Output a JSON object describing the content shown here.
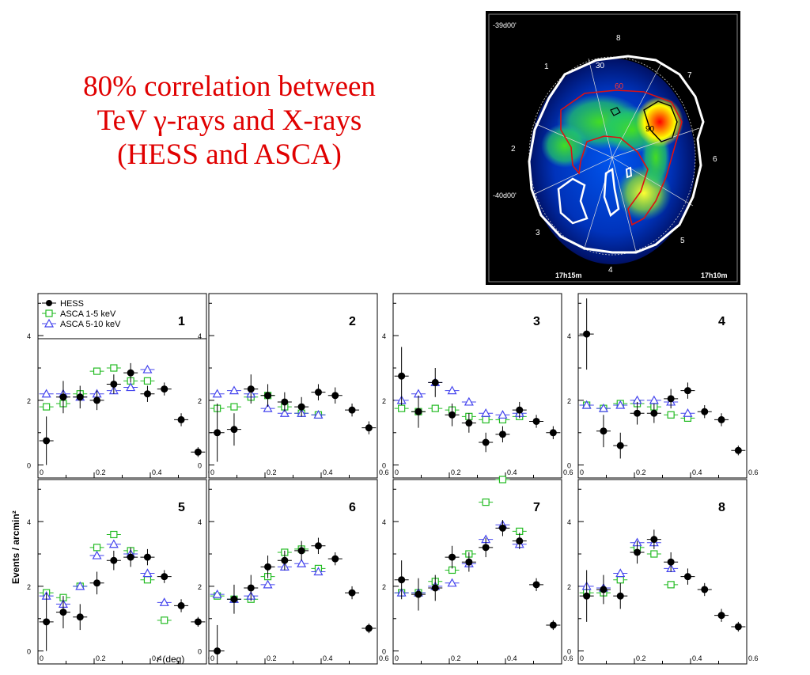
{
  "heading": {
    "line1": "80% correlation between",
    "line2": "TeV γ-rays  and X-rays",
    "line3": "(HESS and ASCA)",
    "color": "#e00000"
  },
  "map": {
    "dec_top": "-39d00'",
    "dec_mid": "-40d00'",
    "ra_left": "17h15m",
    "ra_right": "17h10m",
    "sectors": [
      "1",
      "2",
      "3",
      "4",
      "5",
      "6",
      "7",
      "8"
    ],
    "contours": [
      "30",
      "60",
      "90"
    ]
  },
  "chart_data": {
    "type": "scatter",
    "ylabel": "Events / arcmin²",
    "xlabel": "r (deg)",
    "xlim": [
      0,
      0.6
    ],
    "ylim": [
      -0.4,
      5.3
    ],
    "x_ticks": [
      "0",
      "0.2",
      "0.4",
      "0.6"
    ],
    "y_ticks": [
      "0",
      "2",
      "4"
    ],
    "legend": {
      "position": "top-left",
      "entries": [
        "HESS",
        "ASCA 1-5 keV",
        "ASCA 5-10 keV"
      ]
    },
    "series_styles": [
      {
        "name": "HESS",
        "marker": "filled-circle",
        "color": "#000000"
      },
      {
        "name": "ASCA 1-5 keV",
        "marker": "open-square",
        "color": "#22bb22"
      },
      {
        "name": "ASCA 5-10 keV",
        "marker": "open-triangle",
        "color": "#4444ee"
      }
    ],
    "panels": [
      {
        "label": "1",
        "hess": [
          [
            0.03,
            0.75
          ],
          [
            0.09,
            2.1
          ],
          [
            0.15,
            2.1
          ],
          [
            0.21,
            2.0
          ],
          [
            0.27,
            2.5
          ],
          [
            0.33,
            2.85
          ],
          [
            0.39,
            2.2
          ],
          [
            0.45,
            2.35
          ],
          [
            0.51,
            1.4
          ],
          [
            0.57,
            0.4
          ]
        ],
        "hess_err": [
          0.75,
          0.5,
          0.35,
          0.3,
          0.3,
          0.3,
          0.25,
          0.2,
          0.2,
          0.15
        ],
        "asca_1_5": [
          [
            0.03,
            1.8
          ],
          [
            0.09,
            1.9
          ],
          [
            0.15,
            2.2
          ],
          [
            0.21,
            2.9
          ],
          [
            0.27,
            3.0
          ],
          [
            0.33,
            2.6
          ],
          [
            0.39,
            2.6
          ]
        ],
        "asca_5_10": [
          [
            0.03,
            2.2
          ],
          [
            0.09,
            2.2
          ],
          [
            0.15,
            2.1
          ],
          [
            0.21,
            2.2
          ],
          [
            0.27,
            2.3
          ],
          [
            0.33,
            2.4
          ],
          [
            0.39,
            2.95
          ]
        ]
      },
      {
        "label": "2",
        "hess": [
          [
            0.03,
            1.0
          ],
          [
            0.09,
            1.1
          ],
          [
            0.15,
            2.35
          ],
          [
            0.21,
            2.15
          ],
          [
            0.27,
            1.95
          ],
          [
            0.33,
            1.8
          ],
          [
            0.39,
            2.25
          ],
          [
            0.45,
            2.15
          ],
          [
            0.51,
            1.7
          ],
          [
            0.57,
            1.15
          ]
        ],
        "hess_err": [
          0.9,
          0.5,
          0.45,
          0.35,
          0.3,
          0.3,
          0.25,
          0.25,
          0.2,
          0.2
        ],
        "asca_1_5": [
          [
            0.03,
            1.75
          ],
          [
            0.09,
            1.8
          ],
          [
            0.15,
            2.1
          ],
          [
            0.21,
            2.15
          ],
          [
            0.27,
            1.8
          ],
          [
            0.33,
            1.6
          ],
          [
            0.39,
            1.55
          ]
        ],
        "asca_5_10": [
          [
            0.03,
            2.2
          ],
          [
            0.09,
            2.3
          ],
          [
            0.15,
            2.2
          ],
          [
            0.21,
            1.75
          ],
          [
            0.27,
            1.6
          ],
          [
            0.33,
            1.6
          ],
          [
            0.39,
            1.55
          ]
        ]
      },
      {
        "label": "3",
        "hess": [
          [
            0.03,
            2.75
          ],
          [
            0.09,
            1.65
          ],
          [
            0.15,
            2.55
          ],
          [
            0.21,
            1.55
          ],
          [
            0.27,
            1.3
          ],
          [
            0.33,
            0.7
          ],
          [
            0.39,
            0.95
          ],
          [
            0.45,
            1.7
          ],
          [
            0.51,
            1.35
          ],
          [
            0.57,
            1.0
          ]
        ],
        "hess_err": [
          0.9,
          0.5,
          0.45,
          0.35,
          0.3,
          0.3,
          0.25,
          0.25,
          0.2,
          0.2
        ],
        "asca_1_5": [
          [
            0.03,
            1.75
          ],
          [
            0.09,
            1.65
          ],
          [
            0.15,
            1.75
          ],
          [
            0.21,
            1.7
          ],
          [
            0.27,
            1.5
          ],
          [
            0.33,
            1.4
          ],
          [
            0.39,
            1.4
          ],
          [
            0.45,
            1.5
          ]
        ],
        "asca_5_10": [
          [
            0.03,
            2.0
          ],
          [
            0.09,
            2.2
          ],
          [
            0.15,
            2.55
          ],
          [
            0.21,
            2.3
          ],
          [
            0.27,
            1.95
          ],
          [
            0.33,
            1.6
          ],
          [
            0.39,
            1.55
          ],
          [
            0.45,
            1.6
          ]
        ]
      },
      {
        "label": "4",
        "hess": [
          [
            0.03,
            4.05
          ],
          [
            0.09,
            1.05
          ],
          [
            0.15,
            0.6
          ],
          [
            0.21,
            1.6
          ],
          [
            0.27,
            1.6
          ],
          [
            0.33,
            2.05
          ],
          [
            0.39,
            2.3
          ],
          [
            0.45,
            1.65
          ],
          [
            0.51,
            1.4
          ],
          [
            0.57,
            0.45
          ]
        ],
        "hess_err": [
          1.1,
          0.5,
          0.4,
          0.35,
          0.3,
          0.3,
          0.25,
          0.2,
          0.2,
          0.15
        ],
        "asca_1_5": [
          [
            0.03,
            1.85
          ],
          [
            0.09,
            1.75
          ],
          [
            0.15,
            1.9
          ],
          [
            0.21,
            1.9
          ],
          [
            0.27,
            1.8
          ],
          [
            0.33,
            1.55
          ],
          [
            0.39,
            1.45
          ]
        ],
        "asca_5_10": [
          [
            0.03,
            1.85
          ],
          [
            0.09,
            1.75
          ],
          [
            0.15,
            1.85
          ],
          [
            0.21,
            2.0
          ],
          [
            0.27,
            2.0
          ],
          [
            0.33,
            1.95
          ],
          [
            0.39,
            1.6
          ]
        ]
      },
      {
        "label": "5",
        "hess": [
          [
            0.03,
            0.9
          ],
          [
            0.09,
            1.2
          ],
          [
            0.15,
            1.05
          ],
          [
            0.21,
            2.1
          ],
          [
            0.27,
            2.8
          ],
          [
            0.33,
            2.9
          ],
          [
            0.39,
            2.9
          ],
          [
            0.45,
            2.3
          ],
          [
            0.51,
            1.4
          ],
          [
            0.57,
            0.9
          ]
        ],
        "hess_err": [
          0.9,
          0.5,
          0.4,
          0.35,
          0.3,
          0.3,
          0.25,
          0.2,
          0.2,
          0.15
        ],
        "asca_1_5": [
          [
            0.03,
            1.8
          ],
          [
            0.09,
            1.65
          ],
          [
            0.15,
            2.0
          ],
          [
            0.21,
            3.2
          ],
          [
            0.27,
            3.6
          ],
          [
            0.33,
            3.1
          ],
          [
            0.39,
            2.2
          ],
          [
            0.45,
            0.95
          ]
        ],
        "asca_5_10": [
          [
            0.03,
            1.7
          ],
          [
            0.09,
            1.45
          ],
          [
            0.15,
            2.0
          ],
          [
            0.21,
            2.95
          ],
          [
            0.27,
            3.3
          ],
          [
            0.33,
            3.0
          ],
          [
            0.39,
            2.4
          ],
          [
            0.45,
            1.5
          ]
        ]
      },
      {
        "label": "6",
        "hess": [
          [
            0.03,
            0.0
          ],
          [
            0.09,
            1.6
          ],
          [
            0.15,
            1.95
          ],
          [
            0.21,
            2.6
          ],
          [
            0.27,
            2.8
          ],
          [
            0.33,
            3.1
          ],
          [
            0.39,
            3.25
          ],
          [
            0.45,
            2.85
          ],
          [
            0.51,
            1.8
          ],
          [
            0.57,
            0.7
          ]
        ],
        "hess_err": [
          0.8,
          0.45,
          0.4,
          0.35,
          0.3,
          0.3,
          0.25,
          0.2,
          0.2,
          0.15
        ],
        "asca_1_5": [
          [
            0.03,
            1.7
          ],
          [
            0.09,
            1.6
          ],
          [
            0.15,
            1.6
          ],
          [
            0.21,
            2.3
          ],
          [
            0.27,
            3.05
          ],
          [
            0.33,
            3.15
          ],
          [
            0.39,
            2.55
          ]
        ],
        "asca_5_10": [
          [
            0.03,
            1.75
          ],
          [
            0.09,
            1.6
          ],
          [
            0.15,
            1.7
          ],
          [
            0.21,
            2.05
          ],
          [
            0.27,
            2.6
          ],
          [
            0.33,
            2.7
          ],
          [
            0.39,
            2.45
          ]
        ]
      },
      {
        "label": "7",
        "hess": [
          [
            0.03,
            2.2
          ],
          [
            0.09,
            1.75
          ],
          [
            0.15,
            1.95
          ],
          [
            0.21,
            2.9
          ],
          [
            0.27,
            2.75
          ],
          [
            0.33,
            3.2
          ],
          [
            0.39,
            3.8
          ],
          [
            0.45,
            3.4
          ],
          [
            0.51,
            2.05
          ],
          [
            0.57,
            0.8
          ]
        ],
        "hess_err": [
          0.6,
          0.5,
          0.4,
          0.35,
          0.3,
          0.3,
          0.25,
          0.25,
          0.2,
          0.15
        ],
        "asca_1_5": [
          [
            0.03,
            1.8
          ],
          [
            0.09,
            1.8
          ],
          [
            0.15,
            2.15
          ],
          [
            0.21,
            2.5
          ],
          [
            0.27,
            3.0
          ],
          [
            0.33,
            4.6
          ],
          [
            0.39,
            5.3
          ],
          [
            0.45,
            3.7
          ]
        ],
        "asca_5_10": [
          [
            0.03,
            1.8
          ],
          [
            0.09,
            1.8
          ],
          [
            0.15,
            2.0
          ],
          [
            0.21,
            2.1
          ],
          [
            0.27,
            2.7
          ],
          [
            0.33,
            3.45
          ],
          [
            0.39,
            3.9
          ],
          [
            0.45,
            3.3
          ]
        ]
      },
      {
        "label": "8",
        "hess": [
          [
            0.03,
            1.7
          ],
          [
            0.09,
            1.9
          ],
          [
            0.15,
            1.7
          ],
          [
            0.21,
            3.05
          ],
          [
            0.27,
            3.45
          ],
          [
            0.33,
            2.75
          ],
          [
            0.39,
            2.3
          ],
          [
            0.45,
            1.9
          ],
          [
            0.51,
            1.1
          ],
          [
            0.57,
            0.75
          ]
        ],
        "hess_err": [
          0.8,
          0.45,
          0.4,
          0.35,
          0.3,
          0.3,
          0.25,
          0.2,
          0.2,
          0.15
        ],
        "asca_1_5": [
          [
            0.03,
            1.8
          ],
          [
            0.09,
            1.8
          ],
          [
            0.15,
            2.2
          ],
          [
            0.21,
            3.2
          ],
          [
            0.27,
            3.0
          ],
          [
            0.33,
            2.05
          ]
        ],
        "asca_5_10": [
          [
            0.03,
            2.0
          ],
          [
            0.09,
            1.95
          ],
          [
            0.15,
            2.4
          ],
          [
            0.21,
            3.35
          ],
          [
            0.27,
            3.35
          ],
          [
            0.33,
            2.55
          ]
        ]
      }
    ]
  }
}
